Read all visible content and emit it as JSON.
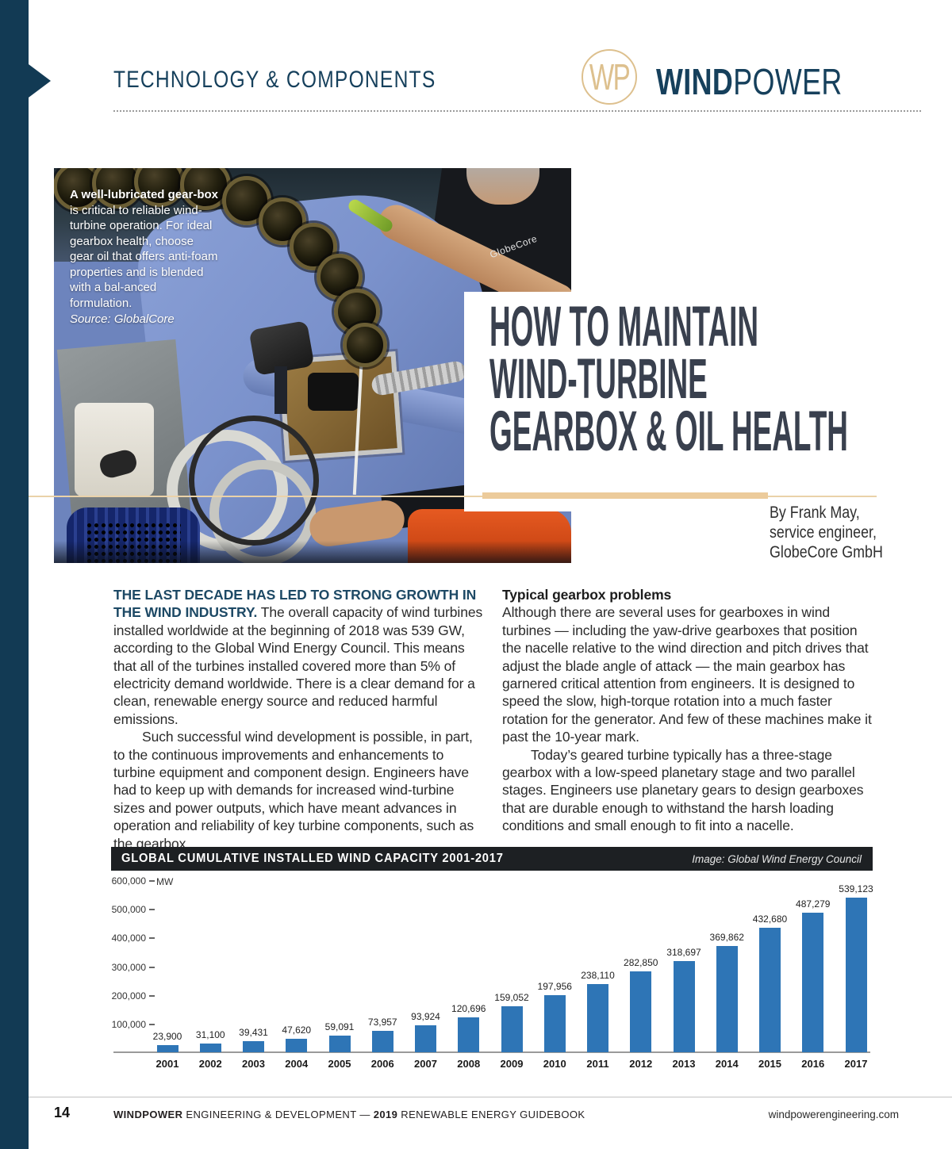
{
  "header": {
    "kicker": "TECHNOLOGY & COMPONENTS",
    "logo_initials": "WP",
    "brand_bold": "WIND",
    "brand_light": "POWER"
  },
  "photo": {
    "caption_bold": "A well-lubricated gear-box",
    "caption_rest": " is critical to reliable wind-turbine operation. For ideal gearbox health, choose gear oil that offers anti-foam properties and is blended with a bal-anced formulation.",
    "caption_source": "Source: GlobalCore",
    "shirt_text": "GlobeCore"
  },
  "title": {
    "lines": [
      "HOW TO MAINTAIN",
      "WIND-TURBINE",
      "GEARBOX & OIL HEALTH"
    ]
  },
  "byline": {
    "lines": [
      "By Frank May,",
      "service engineer,",
      "GlobeCore GmbH"
    ]
  },
  "article": {
    "lead_bold": "THE LAST DECADE HAS LED TO STRONG GROWTH IN THE WIND INDUSTRY.",
    "p1_rest": " The overall capacity of wind turbines installed worldwide at the beginning of 2018 was 539 GW, according to the Global Wind Energy Council. This means that all of the turbines installed covered more than 5% of electricity demand worldwide. There is a clear demand for a clean, renewable energy source and reduced harmful emissions.",
    "p2": "Such successful wind development is possible, in part, to the continuous improvements and enhancements to turbine equipment and component design. Engineers have had to keep up with demands for increased wind-turbine sizes and power outputs, which have meant advances in operation and reliability of key turbine components, such as the gearbox.",
    "col2_heading": "Typical gearbox problems",
    "p3": "Although there are several uses for gearboxes in wind turbines — including the yaw-drive gearboxes that position the nacelle relative to the wind direction and pitch drives that adjust the blade angle of attack — the main gearbox has garnered critical attention from engineers. It is designed to speed the slow, high-torque rotation into a much faster rotation for the generator. And few of these machines make it past the 10-year mark.",
    "p4": "Today’s geared turbine typically has a three-stage gearbox with a low-speed planetary stage and two parallel stages. Engineers use planetary gears to design gearboxes that are durable enough to withstand the harsh loading conditions and small enough to fit into a nacelle."
  },
  "chart_data": {
    "type": "bar",
    "title": "GLOBAL CUMULATIVE INSTALLED WIND CAPACITY 2001-2017",
    "credit": "Image: Global Wind Energy Council",
    "unit": "MW",
    "categories": [
      "2001",
      "2002",
      "2003",
      "2004",
      "2005",
      "2006",
      "2007",
      "2008",
      "2009",
      "2010",
      "2011",
      "2012",
      "2013",
      "2014",
      "2015",
      "2016",
      "2017"
    ],
    "values": [
      23900,
      31100,
      39431,
      47620,
      59091,
      73957,
      93924,
      120696,
      159052,
      197956,
      238110,
      282850,
      318697,
      369862,
      432680,
      487279,
      539123
    ],
    "value_labels": [
      "23,900",
      "31,100",
      "39,431",
      "47,620",
      "59,091",
      "73,957",
      "93,924",
      "120,696",
      "159,052",
      "197,956",
      "238,110",
      "282,850",
      "318,697",
      "369,862",
      "432,680",
      "487,279",
      "539,123"
    ],
    "yticks": [
      "600,000",
      "500,000",
      "400,000",
      "300,000",
      "200,000",
      "100,000"
    ],
    "ylim": [
      0,
      600000
    ],
    "grid": false,
    "legend": "none",
    "bar_color": "#2e75b6"
  },
  "footer": {
    "page_number": "14",
    "left_bold1": "WINDPOWER",
    "left_mid": " ENGINEERING & DEVELOPMENT — ",
    "left_bold2": "2019",
    "left_end": " RENEWABLE ENERGY GUIDEBOOK",
    "right_url": "windpowerengineering.com"
  },
  "colors": {
    "rail_navy": "#123a54",
    "brand_navy": "#16405c",
    "gold": "#eccb9b",
    "headline_slate": "#39404e",
    "lead_navy": "#1d4965",
    "chart_header_bg": "#1d2023",
    "bar_blue": "#2e75b6"
  }
}
